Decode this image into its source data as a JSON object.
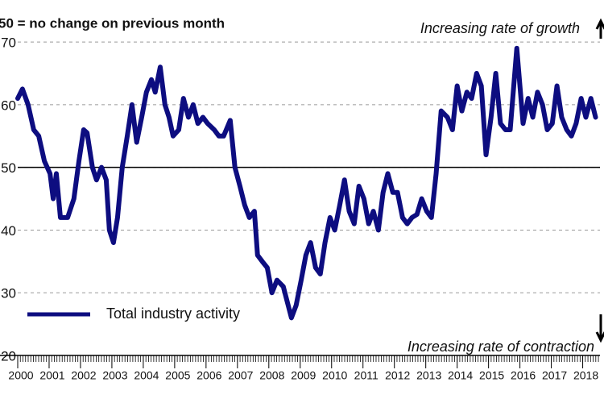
{
  "chart_data": {
    "type": "line",
    "title": "50 = no change on previous month",
    "annotations": [
      "Increasing rate of growth",
      "Increasing rate of contraction"
    ],
    "xlim": [
      2000,
      2018.55
    ],
    "xticks": [
      2000,
      2001,
      2002,
      2003,
      2004,
      2005,
      2006,
      2007,
      2008,
      2009,
      2010,
      2011,
      2012,
      2013,
      2014,
      2015,
      2016,
      2017,
      2018
    ],
    "ylim": [
      20,
      74
    ],
    "yticks": [
      20,
      30,
      40,
      50,
      60,
      70
    ],
    "hline": 50,
    "grid": true,
    "legend": "lower left",
    "x": [
      2000.0,
      2000.15,
      2000.33,
      2000.51,
      2000.67,
      2000.85,
      2001.03,
      2001.13,
      2001.23,
      2001.36,
      2001.59,
      2001.79,
      2001.95,
      2002.1,
      2002.21,
      2002.38,
      2002.51,
      2002.67,
      2002.82,
      2002.92,
      2003.05,
      2003.18,
      2003.33,
      2003.49,
      2003.64,
      2003.79,
      2003.95,
      2004.1,
      2004.26,
      2004.38,
      2004.54,
      2004.69,
      2004.82,
      2004.95,
      2005.13,
      2005.28,
      2005.44,
      2005.59,
      2005.74,
      2005.9,
      2006.05,
      2006.26,
      2006.41,
      2006.56,
      2006.77,
      2006.92,
      2007.08,
      2007.23,
      2007.38,
      2007.54,
      2007.64,
      2007.79,
      2007.95,
      2008.1,
      2008.26,
      2008.46,
      2008.72,
      2008.87,
      2009.03,
      2009.18,
      2009.33,
      2009.49,
      2009.64,
      2009.79,
      2009.95,
      2010.1,
      2010.26,
      2010.41,
      2010.56,
      2010.72,
      2010.87,
      2011.03,
      2011.18,
      2011.33,
      2011.49,
      2011.64,
      2011.79,
      2011.95,
      2012.1,
      2012.26,
      2012.41,
      2012.56,
      2012.72,
      2012.87,
      2013.03,
      2013.18,
      2013.33,
      2013.49,
      2013.69,
      2013.85,
      2014.0,
      2014.15,
      2014.31,
      2014.46,
      2014.62,
      2014.77,
      2014.92,
      2015.08,
      2015.23,
      2015.38,
      2015.54,
      2015.69,
      2015.9,
      2016.1,
      2016.26,
      2016.41,
      2016.56,
      2016.72,
      2016.87,
      2017.03,
      2017.18,
      2017.33,
      2017.49,
      2017.64,
      2017.79,
      2017.95,
      2018.1,
      2018.26,
      2018.41
    ],
    "series": [
      {
        "name": "Total industry activity",
        "color": "#0d0d80",
        "values": [
          61,
          62.5,
          60,
          56,
          55,
          51,
          49,
          45,
          49,
          42,
          42,
          45,
          51,
          56,
          55.5,
          50,
          48,
          50,
          48,
          40,
          38,
          42,
          50,
          55,
          60,
          54,
          58,
          62,
          64,
          62,
          66,
          60,
          58,
          55,
          56,
          61,
          58,
          60,
          57,
          58,
          57,
          56,
          55,
          55,
          57.5,
          50,
          47,
          44,
          42,
          43,
          36,
          35,
          34,
          30,
          32,
          31,
          26,
          28,
          32,
          36,
          38,
          34,
          33,
          38,
          42,
          40,
          44,
          48,
          43,
          41,
          47,
          45,
          41,
          43,
          40,
          46,
          49,
          46,
          46,
          42,
          41,
          42,
          42.5,
          45,
          43,
          42,
          49,
          59,
          58,
          56,
          63,
          59,
          62,
          61,
          65,
          63,
          52,
          58,
          65,
          57,
          56,
          56,
          69,
          57,
          61,
          58,
          62,
          60,
          56,
          57,
          63,
          58,
          56,
          55,
          57,
          61,
          58,
          61,
          58
        ]
      }
    ]
  }
}
